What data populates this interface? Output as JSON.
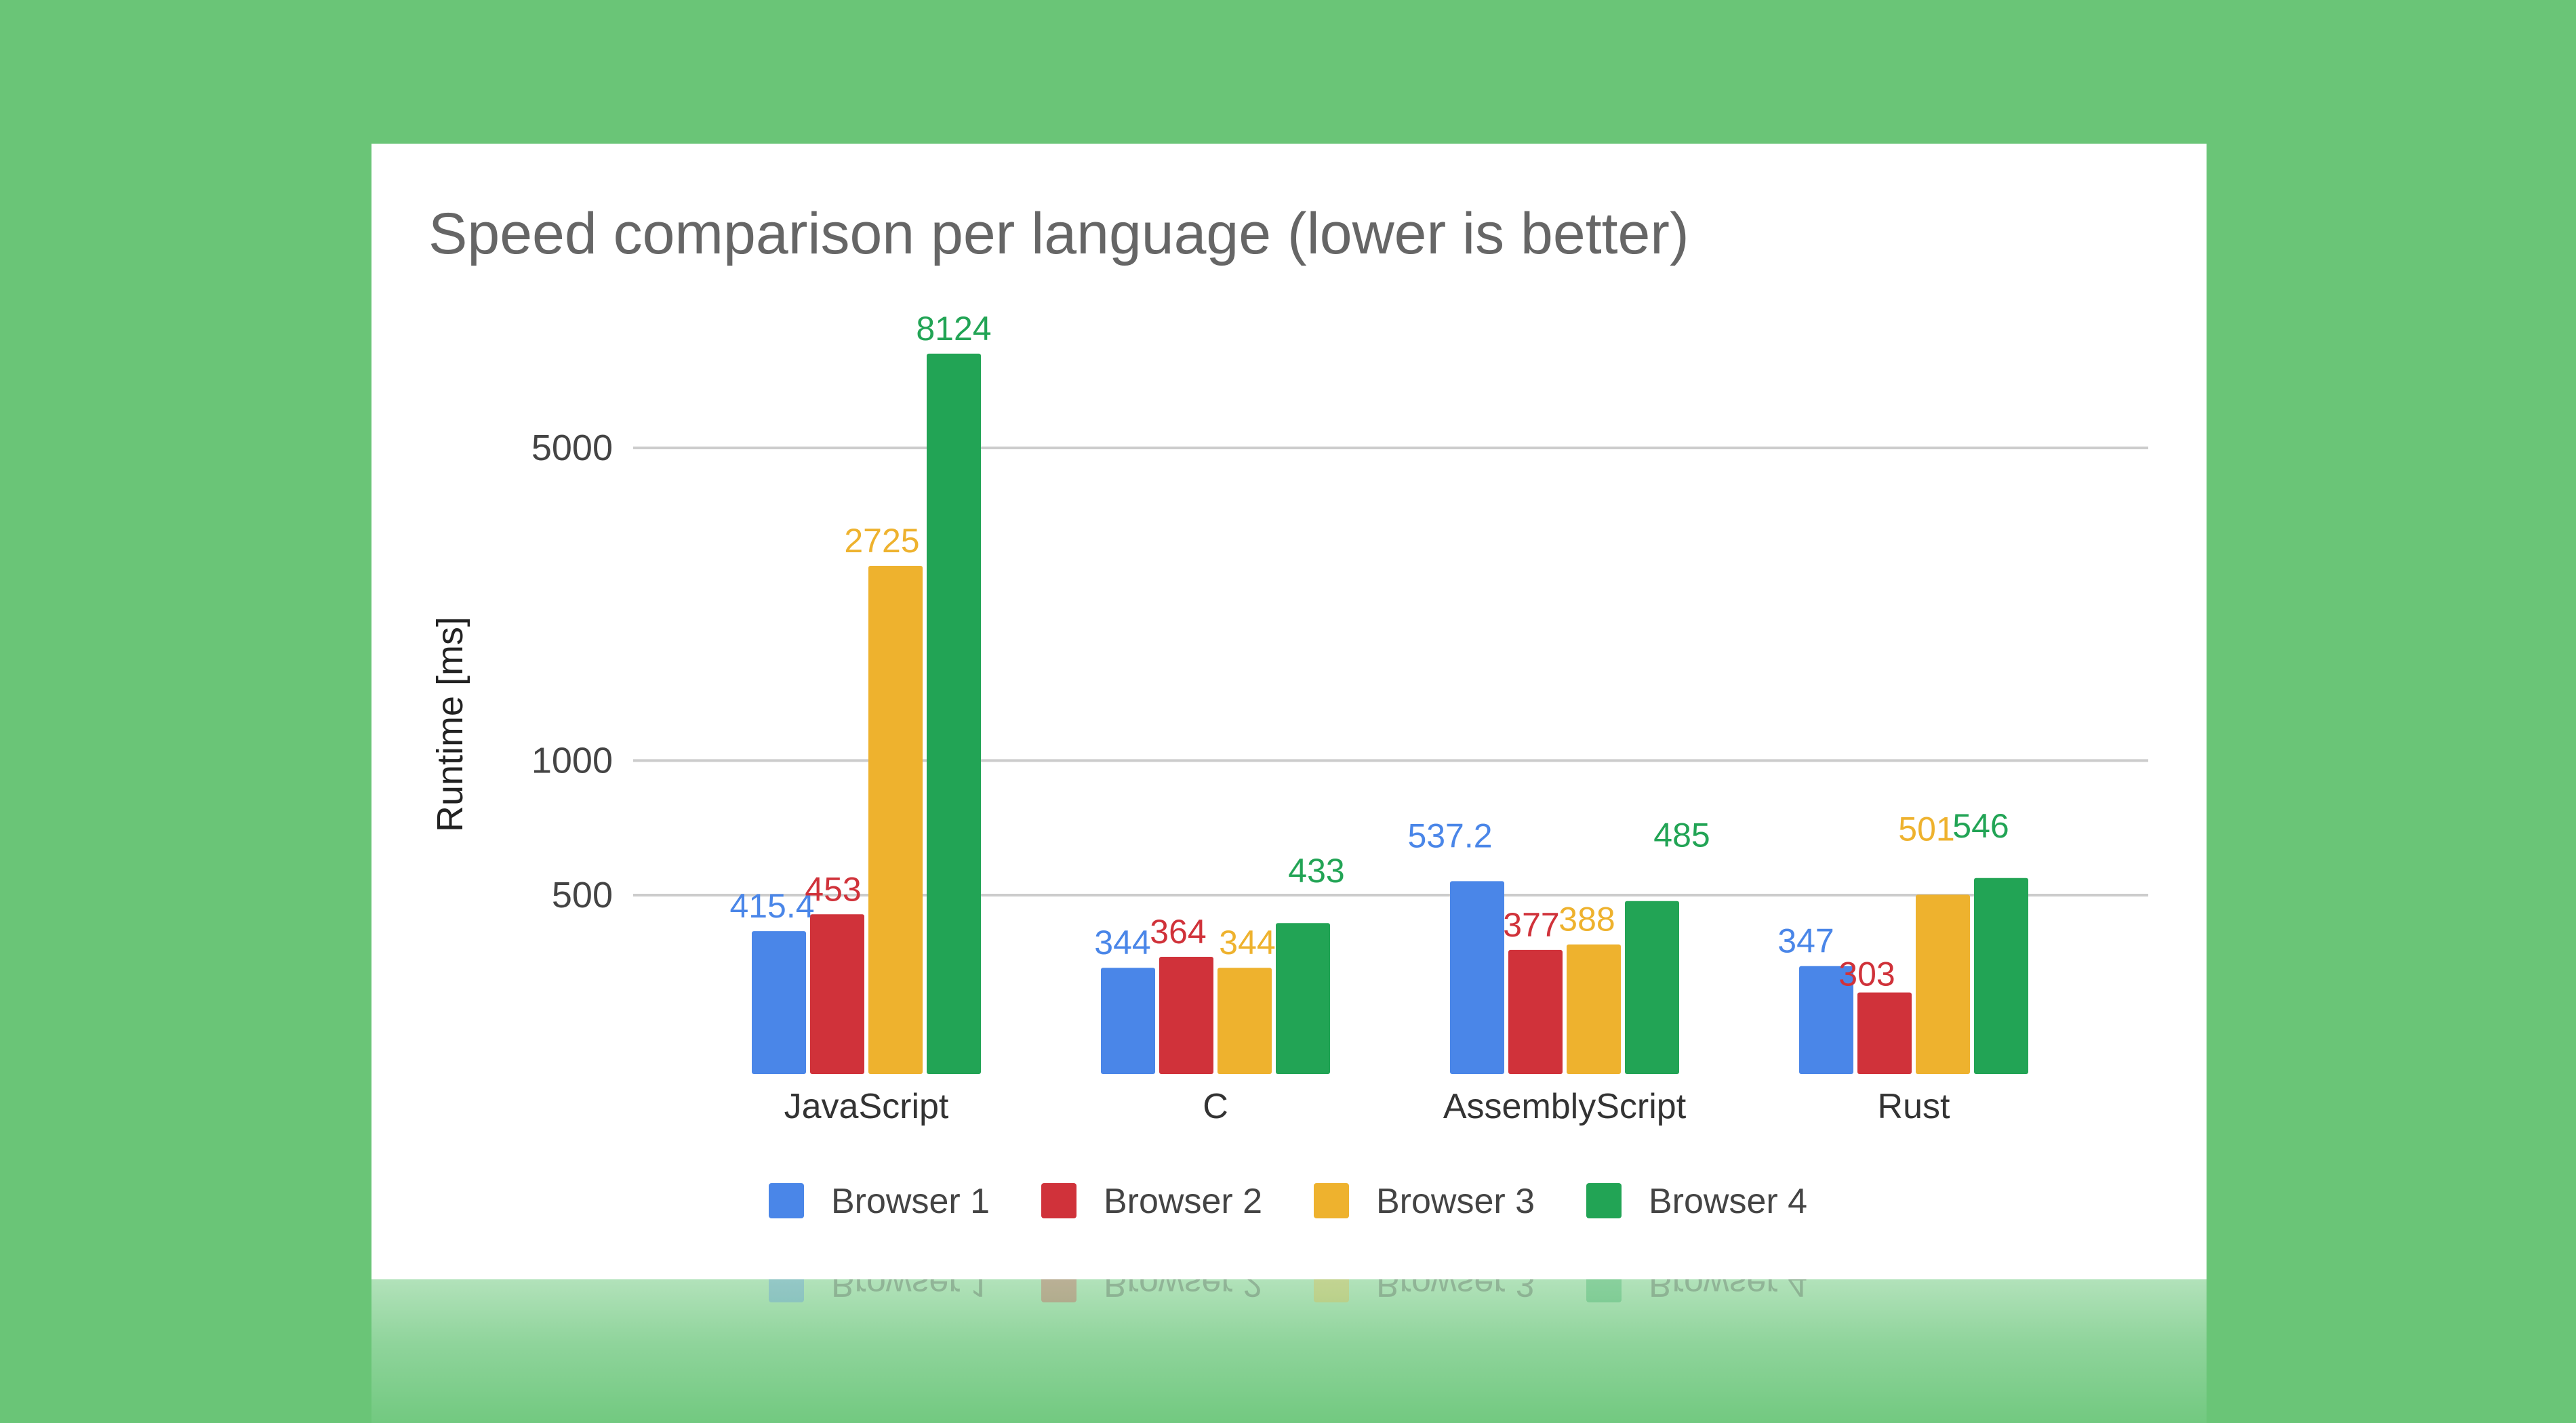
{
  "chart_data": {
    "type": "bar",
    "title": "Speed comparison per language (lower is better)",
    "xlabel": "",
    "ylabel": "Runtime [ms]",
    "y_scale": "log",
    "ylim": [
      200,
      9000
    ],
    "yticks": [
      500,
      1000,
      5000
    ],
    "grid": true,
    "legend_position": "bottom",
    "categories": [
      "JavaScript",
      "C",
      "AssemblyScript",
      "Rust"
    ],
    "series": [
      {
        "name": "Browser 1",
        "color": "#4a86e8",
        "values": [
          415.4,
          344,
          537.2,
          347
        ],
        "labels": [
          "415.4",
          "344",
          "537.2",
          "347"
        ]
      },
      {
        "name": "Browser 2",
        "color": "#d0323a",
        "values": [
          453,
          364,
          377,
          303
        ],
        "labels": [
          "453",
          "364",
          "377",
          "303"
        ]
      },
      {
        "name": "Browser 3",
        "color": "#eeb22e",
        "values": [
          2725,
          344,
          388,
          501
        ],
        "labels": [
          "2725",
          "344",
          "388",
          "501"
        ]
      },
      {
        "name": "Browser 4",
        "color": "#22a455",
        "values": [
          8124,
          433,
          485,
          546
        ],
        "labels": [
          "8124",
          "433",
          "485",
          "546"
        ]
      }
    ]
  }
}
